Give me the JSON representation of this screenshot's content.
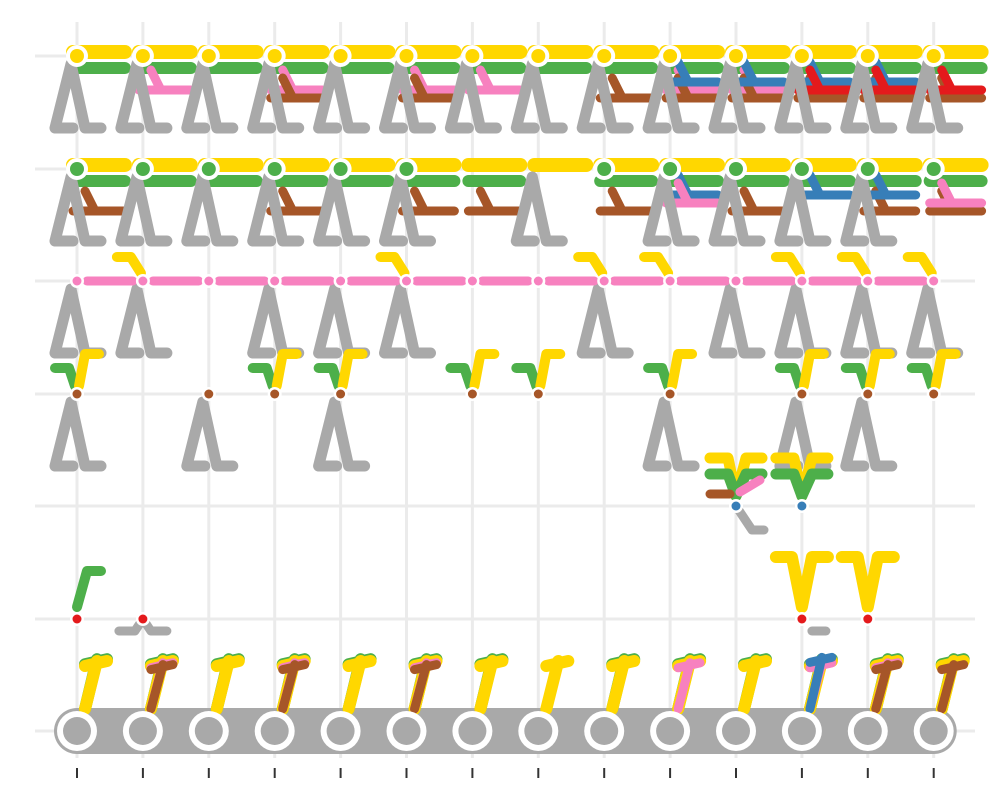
{
  "chart_data": {
    "type": "scatter",
    "title": "",
    "xlabel": "",
    "ylabel": "",
    "grid": true,
    "legend": "none",
    "x_ticks": 14,
    "rows": 7,
    "colors": {
      "yellow": "#FFD700",
      "green": "#4DAF4A",
      "pink": "#F781BF",
      "brown": "#A65628",
      "blue": "#377EB8",
      "red": "#E41A1C",
      "gray": "#A9A9A9"
    },
    "nodes": [
      {
        "row": 0,
        "cols": [
          0,
          1,
          2,
          3,
          4,
          5,
          6,
          7,
          8,
          9,
          10,
          11,
          12,
          13
        ],
        "color": "gray"
      },
      {
        "row": 1,
        "cols": [
          0,
          1
        ],
        "color": "red"
      },
      {
        "row": 1,
        "cols": [
          11,
          12
        ],
        "color": "red"
      },
      {
        "row": 2,
        "cols": [
          10,
          11
        ],
        "color": "blue"
      },
      {
        "row": 3,
        "cols": [
          0,
          2,
          3,
          4,
          6,
          7,
          9,
          11,
          12,
          13
        ],
        "color": "brown"
      },
      {
        "row": 4,
        "cols": [
          0,
          1,
          2,
          3,
          4,
          5,
          6,
          7,
          8,
          9,
          10,
          11,
          12,
          13
        ],
        "color": "pink"
      },
      {
        "row": 5,
        "cols": [
          0,
          1,
          2,
          3,
          4,
          5,
          8,
          9,
          10,
          11,
          12,
          13
        ],
        "color": "green"
      },
      {
        "row": 6,
        "cols": [
          0,
          1,
          2,
          3,
          4,
          5,
          6,
          7,
          8,
          9,
          10,
          11,
          12,
          13
        ],
        "color": "yellow"
      }
    ],
    "segments": [
      {
        "row": 0,
        "color": "gray",
        "cols": [
          0,
          1,
          2,
          3,
          4,
          5,
          6,
          7,
          8,
          9,
          10,
          11,
          12,
          13
        ]
      },
      {
        "row": 0,
        "color": "green",
        "cols": [
          0,
          1,
          2,
          3,
          4,
          5,
          6,
          8,
          9,
          10,
          11,
          12,
          13
        ]
      },
      {
        "row": 0,
        "color": "yellow",
        "cols": [
          0,
          1,
          2,
          3,
          4,
          5,
          6,
          7,
          8,
          9,
          10,
          11,
          12,
          13
        ]
      },
      {
        "row": 0,
        "color": "pink",
        "cols": [
          1,
          3,
          5,
          9,
          11,
          12
        ]
      },
      {
        "row": 0,
        "color": "brown",
        "cols": [
          1,
          3,
          5,
          12,
          13
        ]
      },
      {
        "row": 0,
        "color": "blue",
        "cols": [
          11
        ]
      },
      {
        "row": 5,
        "color": "yellow",
        "cols": [
          0,
          1,
          2,
          3,
          4,
          5,
          6,
          7,
          8,
          9,
          10,
          11,
          12,
          13
        ]
      },
      {
        "row": 5,
        "color": "green",
        "cols": [
          0,
          1,
          2,
          3,
          4,
          5,
          6,
          8,
          9,
          10,
          11,
          12,
          13
        ]
      },
      {
        "row": 5,
        "color": "brown",
        "cols": [
          0,
          3,
          5,
          6,
          8,
          10,
          12,
          13
        ]
      },
      {
        "row": 5,
        "color": "blue",
        "cols": [
          9,
          11,
          12
        ]
      },
      {
        "row": 5,
        "color": "pink",
        "cols": [
          9,
          13
        ]
      },
      {
        "row": 6,
        "color": "yellow",
        "cols": [
          0,
          1,
          2,
          3,
          4,
          5,
          6,
          7,
          8,
          9,
          10,
          11,
          12,
          13
        ]
      },
      {
        "row": 6,
        "color": "green",
        "cols": [
          0,
          1,
          2,
          3,
          4,
          5,
          6,
          7,
          8,
          9,
          10,
          11,
          12,
          13
        ]
      },
      {
        "row": 6,
        "color": "pink",
        "cols": [
          1,
          3,
          5,
          6,
          9,
          10,
          11,
          12
        ]
      },
      {
        "row": 6,
        "color": "brown",
        "cols": [
          3,
          5,
          8,
          9,
          10,
          11,
          12,
          13
        ]
      },
      {
        "row": 6,
        "color": "blue",
        "cols": [
          9,
          10,
          11,
          12
        ]
      },
      {
        "row": 6,
        "color": "red",
        "cols": [
          11,
          12,
          13
        ]
      }
    ]
  }
}
